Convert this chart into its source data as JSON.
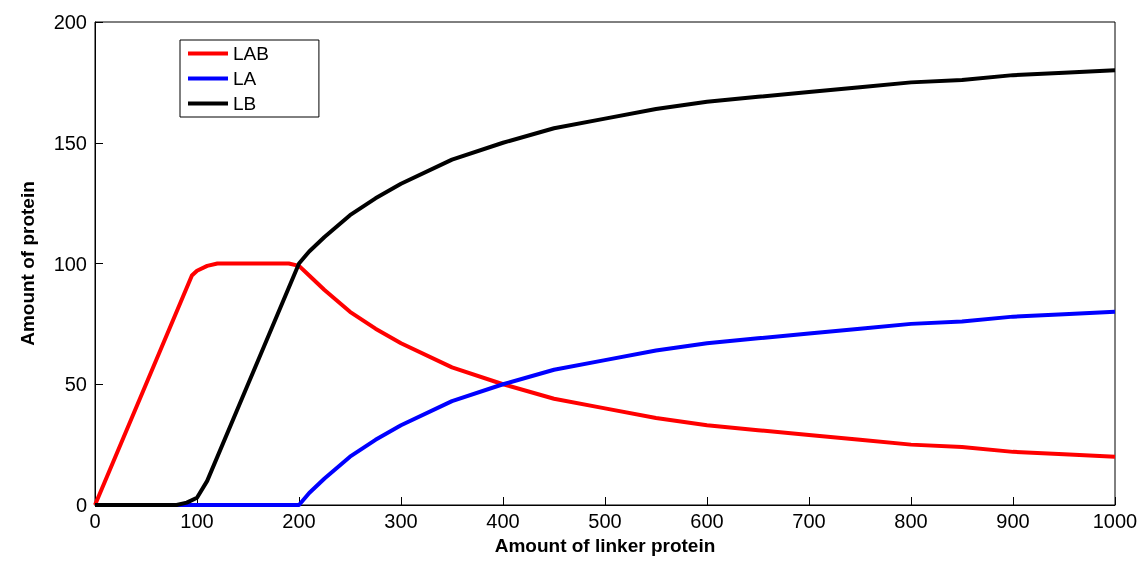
{
  "chart_data": {
    "type": "line",
    "xlabel": "Amount of linker protein",
    "ylabel": "Amount of protein",
    "xlim": [
      0,
      1000
    ],
    "xticks": [
      0,
      100,
      200,
      300,
      400,
      500,
      600,
      700,
      800,
      900,
      1000
    ],
    "ylim": [
      0,
      200
    ],
    "yticks": [
      0,
      50,
      100,
      150,
      200
    ],
    "grid": false,
    "legend": "top left",
    "marker": "none",
    "line_style": "solid",
    "series": [
      {
        "name": "LAB",
        "color": "#ff0000",
        "x": [
          0,
          50,
          95,
          100,
          110,
          120,
          150,
          190,
          200,
          210,
          225,
          250,
          275,
          300,
          350,
          400,
          450,
          500,
          550,
          600,
          650,
          700,
          750,
          800,
          850,
          900,
          950,
          1000
        ],
        "values": [
          0,
          50,
          95,
          97,
          99,
          100,
          100,
          100,
          99,
          95,
          89,
          80,
          73,
          67,
          57,
          50,
          44,
          40,
          36,
          33,
          31,
          29,
          27,
          25,
          24,
          22,
          21,
          20
        ]
      },
      {
        "name": "LA",
        "color": "#0000ff",
        "x": [
          0,
          100,
          200,
          210,
          225,
          250,
          275,
          300,
          350,
          400,
          450,
          500,
          550,
          600,
          650,
          700,
          750,
          800,
          850,
          900,
          950,
          1000
        ],
        "values": [
          0,
          0,
          0,
          5,
          11,
          20,
          27,
          33,
          43,
          50,
          56,
          60,
          64,
          67,
          69,
          71,
          73,
          75,
          76,
          78,
          79,
          80
        ]
      },
      {
        "name": "LB",
        "color": "#000000",
        "x": [
          0,
          50,
          80,
          90,
          100,
          110,
          150,
          200,
          210,
          225,
          250,
          275,
          300,
          350,
          400,
          450,
          500,
          550,
          600,
          650,
          700,
          750,
          800,
          850,
          900,
          950,
          1000
        ],
        "values": [
          0,
          0,
          0,
          1,
          3,
          10,
          50,
          100,
          105,
          111,
          120,
          127,
          133,
          143,
          150,
          156,
          160,
          164,
          167,
          169,
          171,
          173,
          175,
          176,
          178,
          179,
          180
        ]
      }
    ]
  }
}
